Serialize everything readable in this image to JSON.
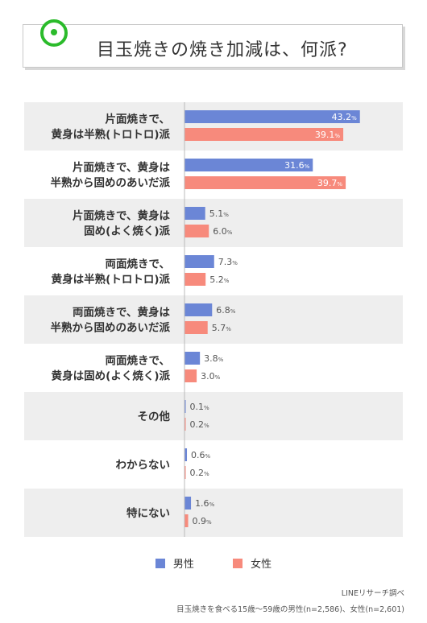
{
  "title": "目玉焼きの焼き加減は、何派?",
  "colors": {
    "male": "#6b86d6",
    "female": "#f78a7c",
    "band": "#eeeeee"
  },
  "legend": {
    "male": "男性",
    "female": "女性"
  },
  "source": {
    "line1": "LINEリサーチ調べ",
    "line2": "目玉焼きを食べる15歳～59歳の男性(n=2,586)、女性(n=2,601)"
  },
  "chart_data": {
    "type": "bar",
    "orientation": "horizontal",
    "unit": "%",
    "categories": [
      [
        "片面焼きで、",
        "黄身は半熟(トロトロ)派"
      ],
      [
        "片面焼きで、黄身は",
        "半熟から固めのあいだ派"
      ],
      [
        "片面焼きで、黄身は",
        "固め(よく焼く)派"
      ],
      [
        "両面焼きで、",
        "黄身は半熟(トロトロ)派"
      ],
      [
        "両面焼きで、黄身は",
        "半熟から固めのあいだ派"
      ],
      [
        "両面焼きで、",
        "黄身は固め(よく焼く)派"
      ],
      [
        "その他"
      ],
      [
        "わからない"
      ],
      [
        "特にない"
      ]
    ],
    "series": [
      {
        "name": "男性",
        "values": [
          43.2,
          31.6,
          5.1,
          7.3,
          6.8,
          3.8,
          0.1,
          0.6,
          1.6
        ]
      },
      {
        "name": "女性",
        "values": [
          39.1,
          39.7,
          6.0,
          5.2,
          5.7,
          3.0,
          0.2,
          0.2,
          0.9
        ]
      }
    ],
    "xlim": [
      0,
      50
    ]
  }
}
